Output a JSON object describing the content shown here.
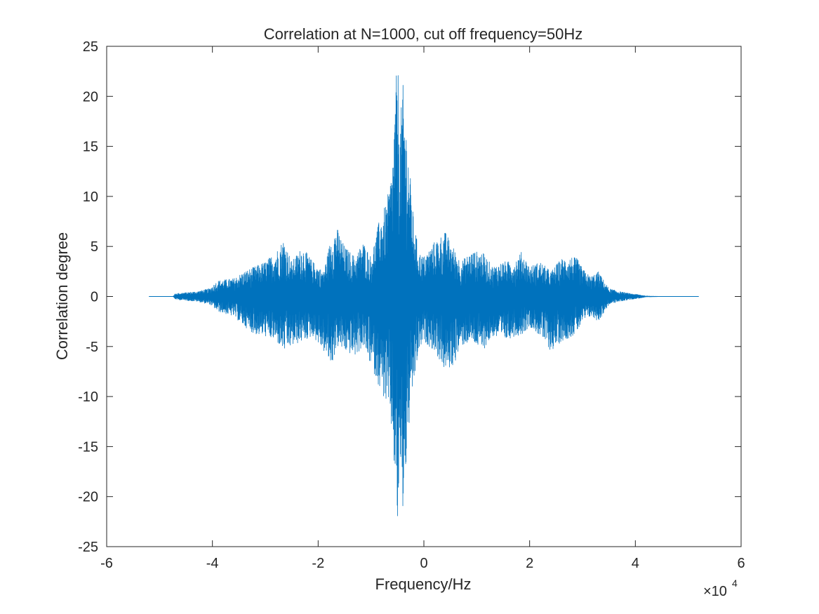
{
  "chart_data": {
    "type": "line",
    "title": "Correlation at N=1000, cut off frequency=50Hz",
    "xlabel": "Frequency/Hz",
    "ylabel": "Correlation degree",
    "x_exponent_label": {
      "base": "×10",
      "exp": "4"
    },
    "xlim": [
      -6,
      6
    ],
    "ylim": [
      -25,
      25
    ],
    "x_ticks": [
      -6,
      -4,
      -2,
      0,
      2,
      4,
      6
    ],
    "x_tick_labels": [
      "-6",
      "-4",
      "-2",
      "0",
      "2",
      "4",
      "6"
    ],
    "y_ticks": [
      -25,
      -20,
      -15,
      -10,
      -5,
      0,
      5,
      10,
      15,
      20,
      25
    ],
    "y_tick_labels": [
      "-25",
      "-20",
      "-15",
      "-10",
      "-5",
      "0",
      "5",
      "10",
      "15",
      "20",
      "25"
    ],
    "grid": false,
    "box": true,
    "series": [
      {
        "color": "#0072BD",
        "envelope": {
          "x": [
            -5.2,
            -4.75,
            -4.7,
            -4.3,
            -4.05,
            -3.9,
            -3.6,
            -3.4,
            -3.2,
            -3.0,
            -2.8,
            -2.65,
            -2.5,
            -2.3,
            -2.1,
            -1.9,
            -1.75,
            -1.65,
            -1.5,
            -1.3,
            -1.15,
            -1.0,
            -0.85,
            -0.7,
            -0.6,
            -0.5,
            -0.45,
            -0.4,
            -0.3,
            -0.2,
            -0.1,
            0.0,
            0.2,
            0.4,
            0.55,
            0.7,
            0.9,
            1.1,
            1.3,
            1.5,
            1.7,
            1.85,
            2.0,
            2.2,
            2.4,
            2.6,
            2.8,
            2.9,
            3.0,
            3.15,
            3.3,
            3.5,
            3.7,
            3.9,
            4.05,
            4.15,
            4.2,
            4.5,
            5.2
          ],
          "upper": [
            0.0,
            0.0,
            0.3,
            0.5,
            0.8,
            1.6,
            1.8,
            2.5,
            3.0,
            3.5,
            4.5,
            5.8,
            3.5,
            5.0,
            3.5,
            2.5,
            6.0,
            7.0,
            5.0,
            4.0,
            5.5,
            4.0,
            7.5,
            9.5,
            13.0,
            24.5,
            17.0,
            21.5,
            15.0,
            8.0,
            4.5,
            4.0,
            5.5,
            6.5,
            5.0,
            3.5,
            4.5,
            4.5,
            3.0,
            3.5,
            3.5,
            4.5,
            3.0,
            3.5,
            2.5,
            3.8,
            4.0,
            3.8,
            2.8,
            2.0,
            2.5,
            0.8,
            0.5,
            0.3,
            0.2,
            0.1,
            0.05,
            0.0,
            0.0
          ],
          "lower": [
            0.0,
            0.0,
            -0.3,
            -0.5,
            -0.8,
            -1.5,
            -2.0,
            -3.0,
            -3.8,
            -4.0,
            -4.5,
            -5.5,
            -5.0,
            -4.5,
            -4.0,
            -5.5,
            -7.0,
            -5.0,
            -5.5,
            -6.0,
            -5.0,
            -7.0,
            -9.0,
            -11.0,
            -14.0,
            -23.5,
            -17.0,
            -22.0,
            -14.0,
            -9.0,
            -5.5,
            -4.5,
            -5.5,
            -7.5,
            -7.0,
            -5.0,
            -4.5,
            -5.5,
            -4.0,
            -4.5,
            -4.0,
            -3.8,
            -3.0,
            -4.0,
            -5.5,
            -4.5,
            -4.0,
            -3.5,
            -2.5,
            -2.0,
            -2.5,
            -0.8,
            -0.5,
            -0.3,
            -0.2,
            -0.1,
            -0.05,
            0.0,
            0.0
          ]
        }
      }
    ]
  }
}
